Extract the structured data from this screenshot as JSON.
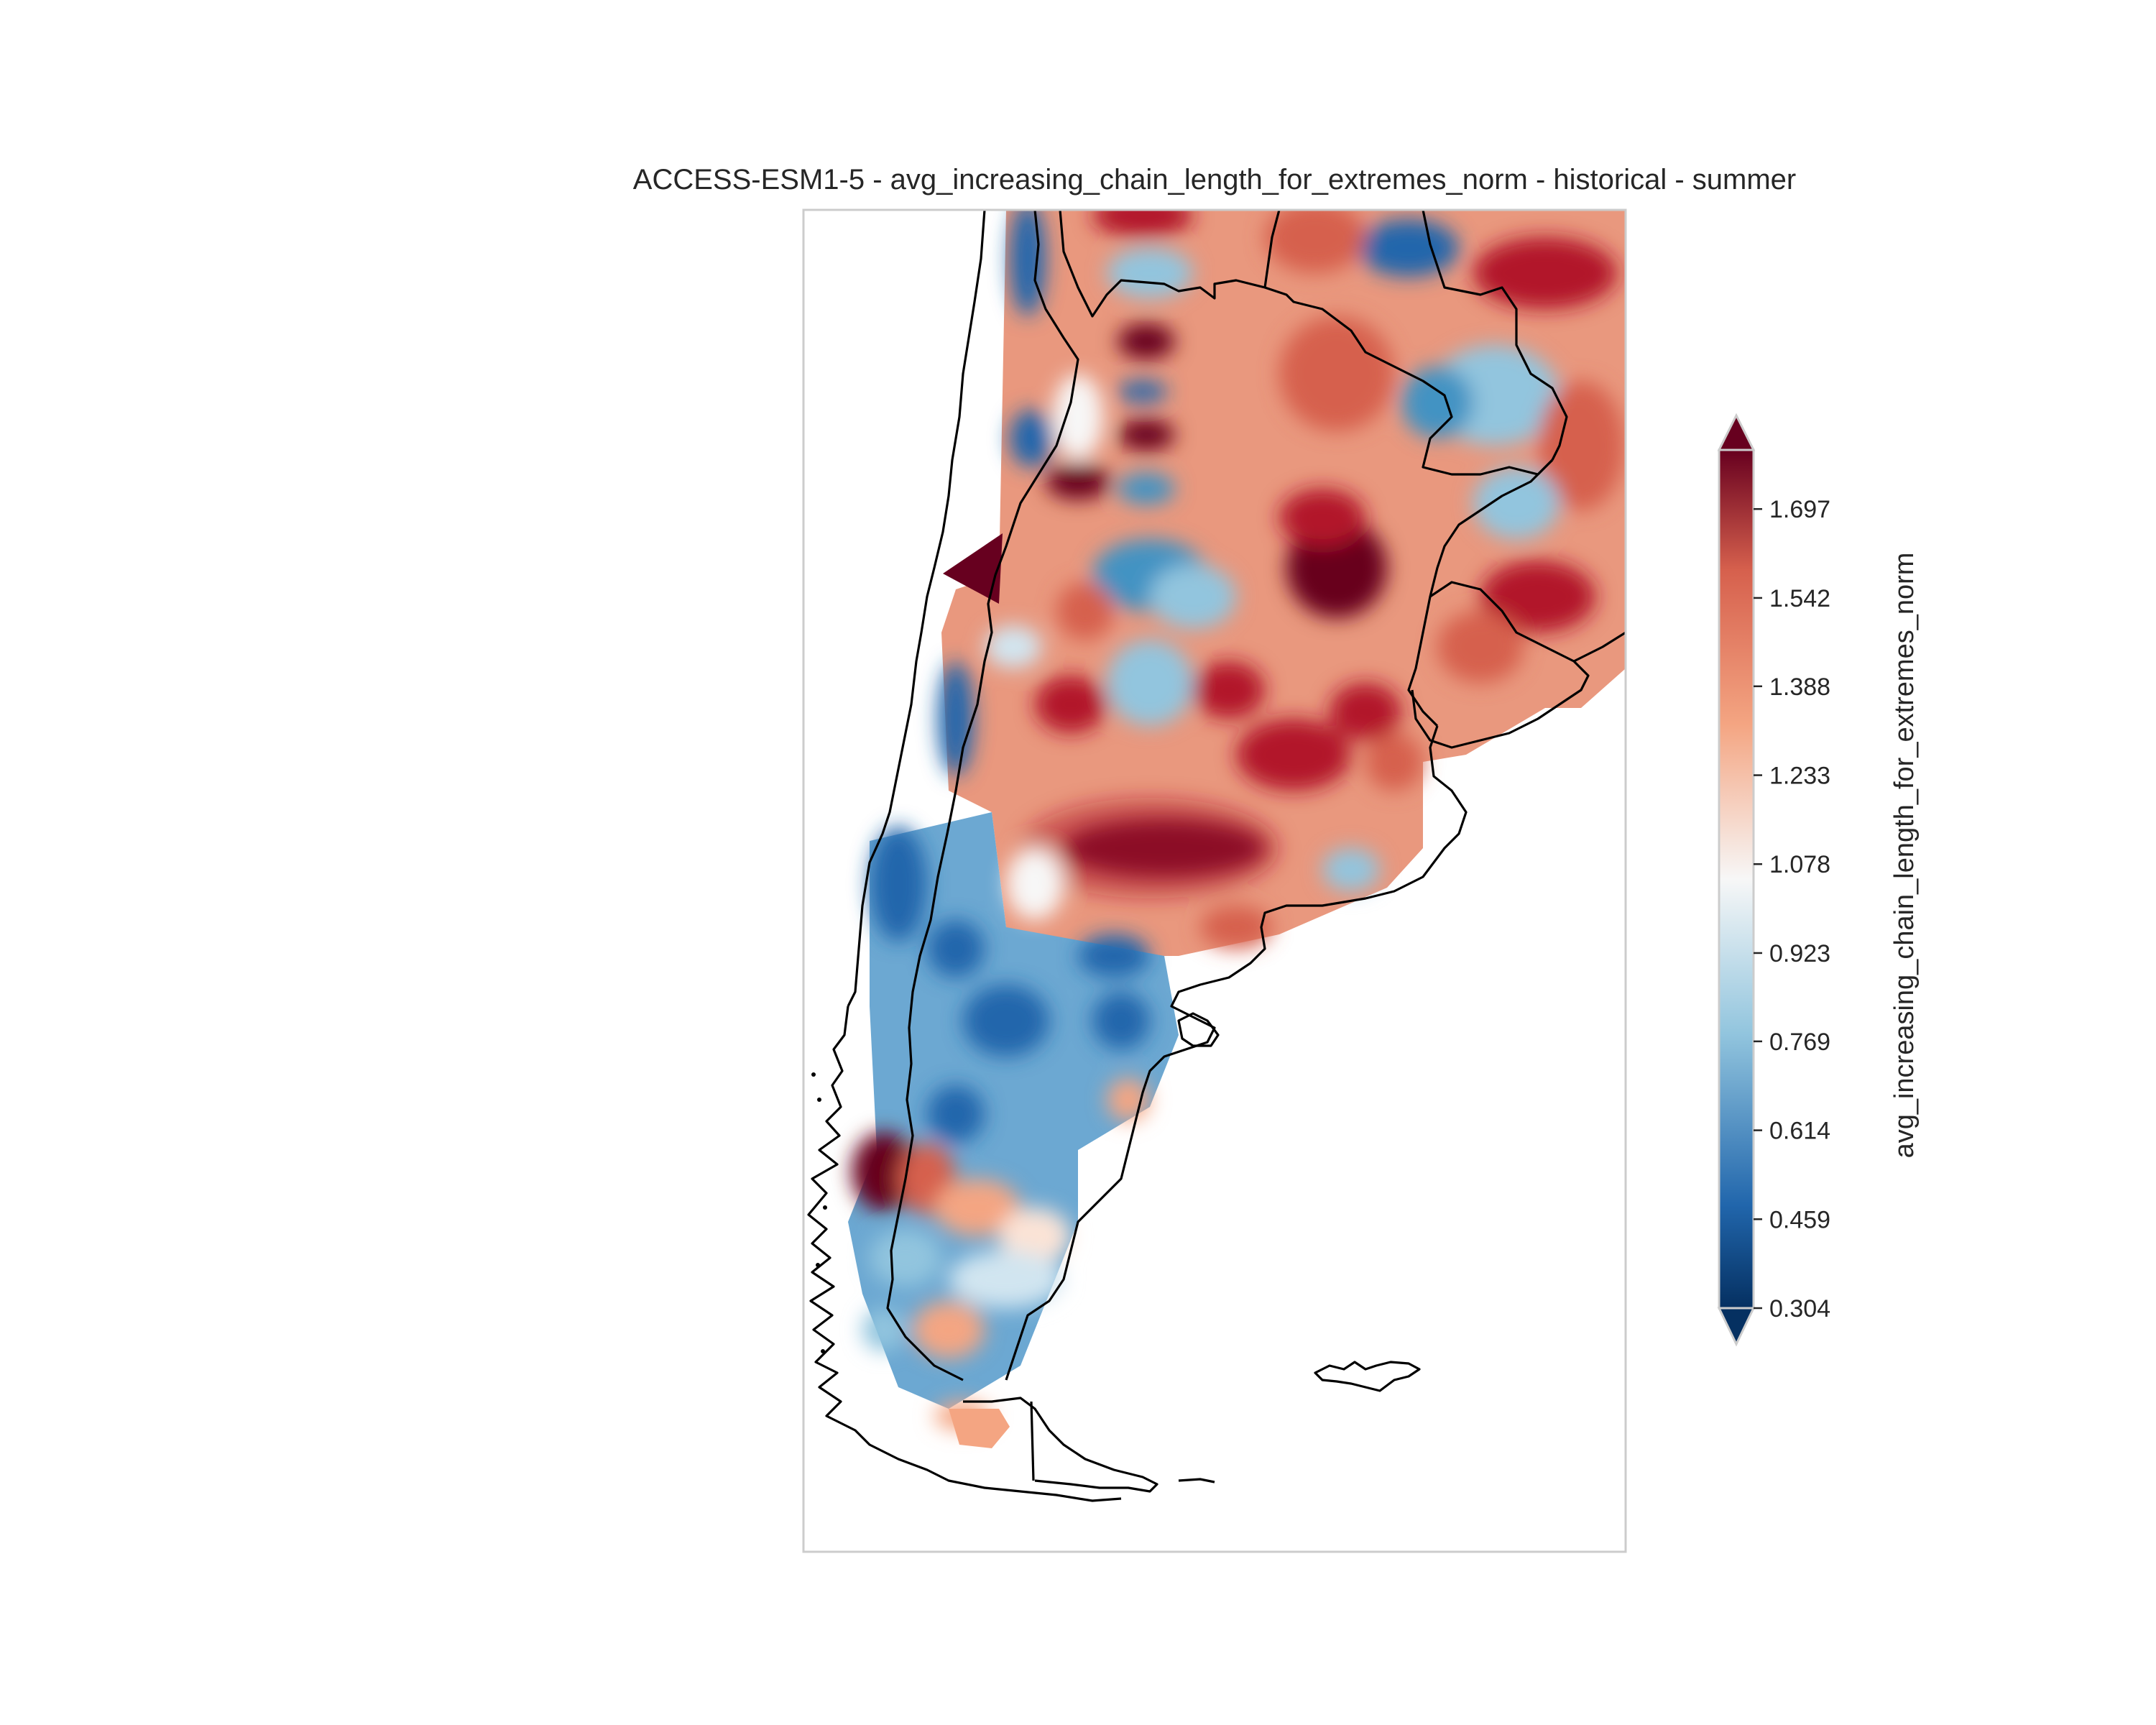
{
  "title": "ACCESS-ESM1-5 - avg_increasing_chain_length_for_extremes_norm - historical - summer",
  "colorbar": {
    "label": "avg_increasing_chain_length_for_extremes_norm",
    "colormap": "RdBu_r",
    "extend": "both",
    "ticks": [
      "0.304",
      "0.459",
      "0.614",
      "0.769",
      "0.923",
      "1.078",
      "1.233",
      "1.388",
      "1.542",
      "1.697"
    ],
    "min": 0.304,
    "max": 1.8
  },
  "colors": {
    "dark_blue": "#053061",
    "blue": "#2166ac",
    "light_blue": "#92c5de",
    "white": "#f7f7f7",
    "light_red": "#f4a582",
    "red": "#d6604d",
    "dark_red": "#67001f",
    "coastline": "#000000",
    "frame": "#cccccc"
  }
}
